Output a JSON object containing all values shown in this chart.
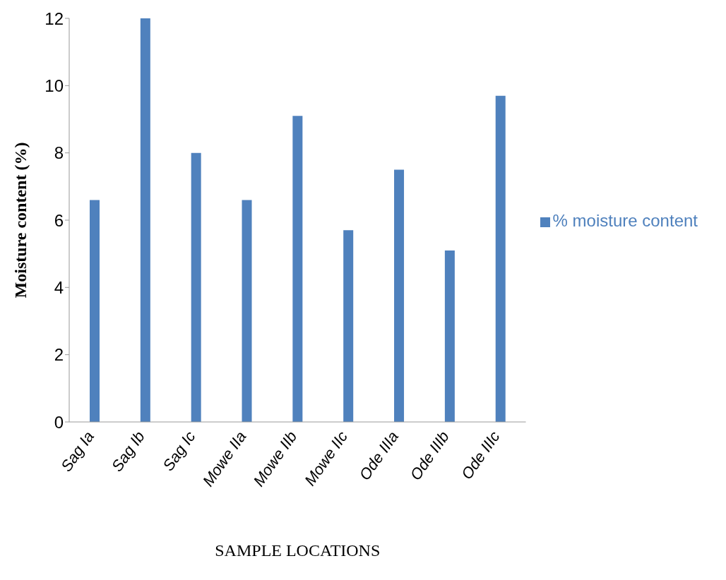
{
  "chart_data": {
    "type": "bar",
    "xlabel": "SAMPLE LOCATIONS",
    "ylabel": "Moisture content (%)",
    "categories": [
      "Sag Ia",
      "Sag Ib",
      "Sag Ic",
      "Mowe IIa",
      "Mowe IIb",
      "Mowe IIc",
      "Ode IIIa",
      "Ode IIIb",
      "Ode IIIc"
    ],
    "series": [
      {
        "name": "% moisture content",
        "color": "#4f81bd",
        "values": [
          6.6,
          12,
          8,
          6.6,
          9.1,
          5.7,
          7.5,
          5.1,
          9.7
        ]
      }
    ],
    "ylim": [
      0,
      12
    ],
    "yticks": [
      0,
      2,
      4,
      6,
      8,
      10,
      12
    ],
    "grid": false,
    "legend": "right"
  }
}
